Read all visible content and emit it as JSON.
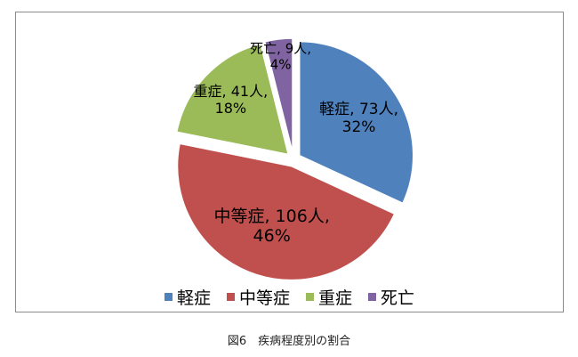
{
  "chart_data": {
    "type": "pie",
    "categories": [
      "軽症",
      "中等症",
      "重症",
      "死亡"
    ],
    "values": [
      73,
      106,
      41,
      9
    ],
    "percents": [
      32,
      46,
      18,
      4
    ],
    "data_labels": [
      [
        "軽症, 73人,",
        "32%"
      ],
      [
        "中等症, 106人,",
        "46%"
      ],
      [
        "重症, 41人,",
        "18%"
      ],
      [
        "死亡, 9人,",
        "4%"
      ]
    ],
    "colors": [
      "#4f81bd",
      "#c0504d",
      "#9bbb59",
      "#8064a2"
    ],
    "legend_position": "bottom"
  },
  "caption": "図6　疾病程度別の割合"
}
